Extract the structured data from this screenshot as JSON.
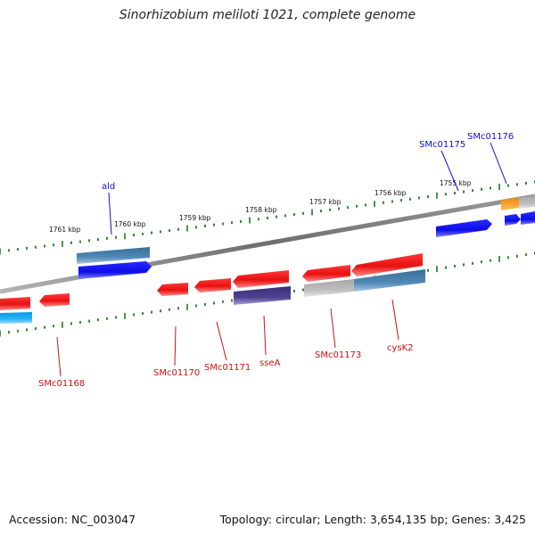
{
  "title": "Sinorhizobium meliloti 1021, complete genome",
  "footer": {
    "accession": "Accession: NC_003047",
    "stats": "Topology: circular; Length: 3,654,135 bp; Genes: 3,425"
  },
  "kbp_labels": [
    "1761 kbp",
    "1760 kbp",
    "1759 kbp",
    "1758 kbp",
    "1757 kbp",
    "1756 kbp",
    "1755 kbp"
  ],
  "gene_labels": {
    "ald": "ald",
    "smc01175": "SMc01175",
    "smc01176": "SMc01176",
    "smc01168": "SMc01168",
    "smc01170": "SMc01170",
    "smc01171": "SMc01171",
    "ssea": "sseA",
    "smc01173": "SMc01173",
    "cysk2": "cysK2"
  },
  "colors": {
    "outer_strand_label": "#1010c8",
    "inner_strand_label": "#cc1010",
    "backbone": "#808080",
    "tick": "#1f7a1f",
    "red_gene": "#ee1111",
    "blue_gene": "#1010ee",
    "steel_gene": "#4a82b0",
    "purple_gene": "#4a3f8c",
    "gray_gene": "#b8b8b8",
    "cyan_gene": "#1aa8ee",
    "orange_gene": "#f59312"
  }
}
